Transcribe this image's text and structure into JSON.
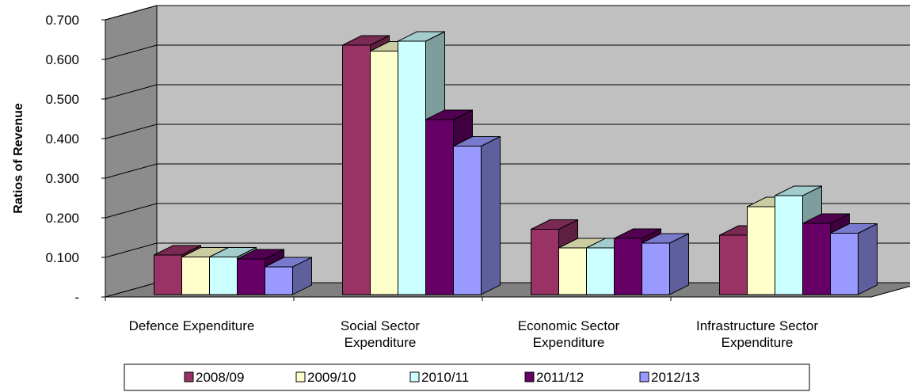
{
  "chart_data": {
    "type": "bar",
    "title": "",
    "xlabel": "",
    "ylabel": "Ratios of Revenue",
    "categories": [
      [
        "Defence Expenditure"
      ],
      [
        "Social Sector",
        "Expenditure"
      ],
      [
        "Economic Sector",
        "Expenditure"
      ],
      [
        "Infrastructure Sector",
        "Expenditure"
      ]
    ],
    "series": [
      {
        "name": "2008/09",
        "color": "#993366",
        "values": [
          0.1,
          0.63,
          0.165,
          0.15
        ]
      },
      {
        "name": "2009/10",
        "color": "#FFFFCC",
        "values": [
          0.095,
          0.615,
          0.118,
          0.222
        ]
      },
      {
        "name": "2010/11",
        "color": "#CCFFFF",
        "values": [
          0.095,
          0.64,
          0.118,
          0.25
        ]
      },
      {
        "name": "2011/12",
        "color": "#660066",
        "values": [
          0.09,
          0.442,
          0.142,
          0.18
        ]
      },
      {
        "name": "2012/13",
        "color": "#9999FF",
        "values": [
          0.07,
          0.375,
          0.13,
          0.155
        ]
      }
    ],
    "ylim": [
      0,
      0.7
    ],
    "yticks": [
      "-",
      "0.100",
      "0.200",
      "0.300",
      "0.400",
      "0.500",
      "0.600",
      "0.700"
    ],
    "grid": true,
    "legend_position": "bottom",
    "style": "3d-clustered-column",
    "wall_color": "#C0C0C0",
    "floor_color": "#808080"
  }
}
